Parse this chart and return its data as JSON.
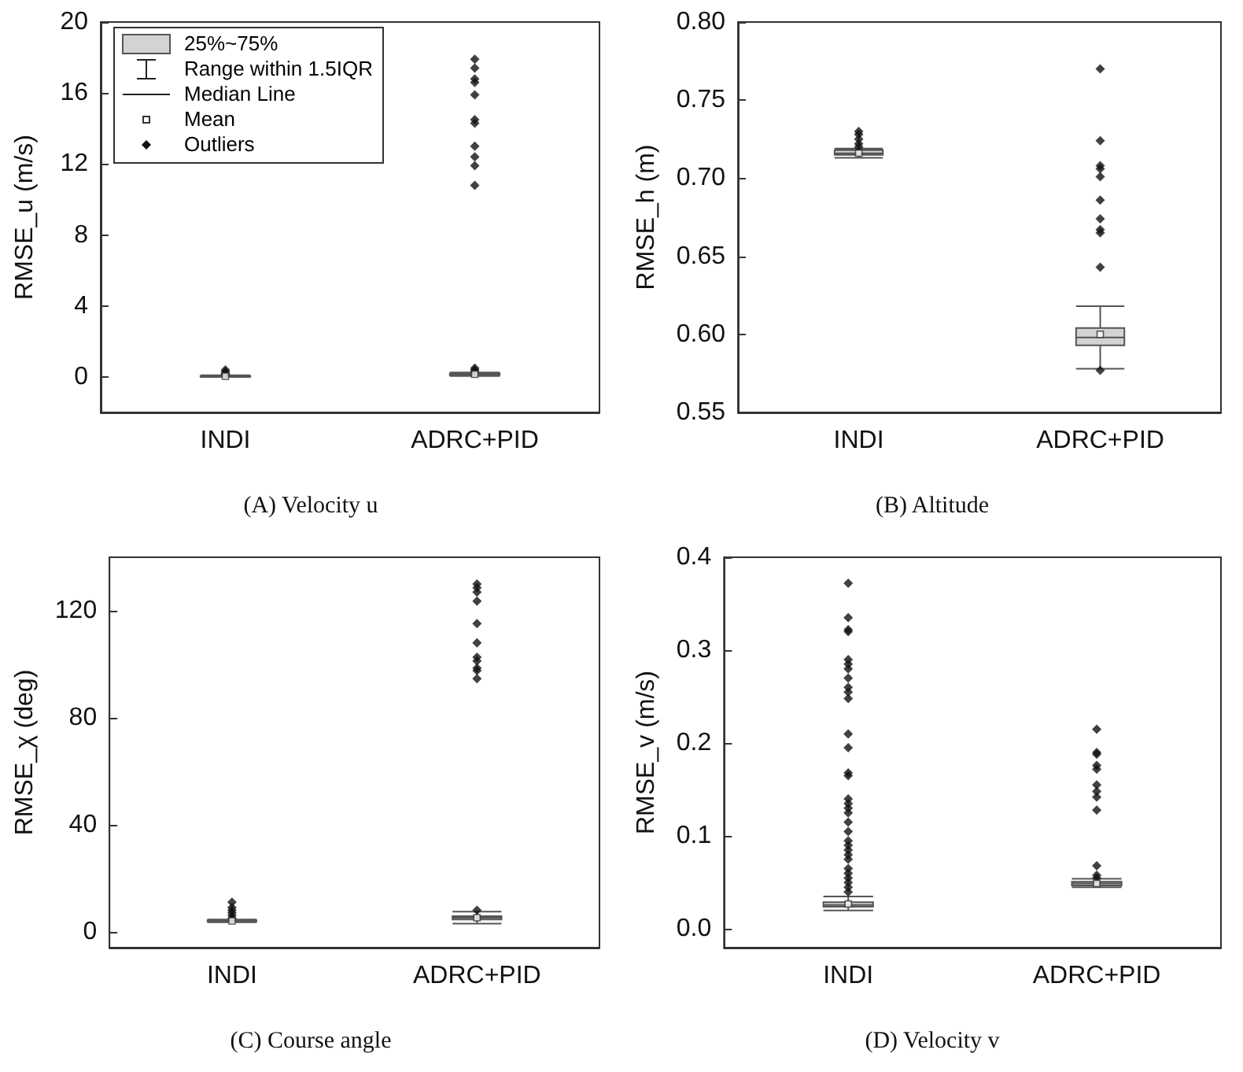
{
  "chart_data": [
    {
      "type": "box",
      "title": "(A) Velocity u",
      "ylabel": "RMSE_u (m/s)",
      "categories": [
        "INDI",
        "ADRC+PID"
      ],
      "color": "#d3d3d3",
      "marker": "diamond",
      "ylim": [
        -2,
        20
      ],
      "yticks": [
        0,
        4,
        8,
        12,
        16,
        20
      ],
      "annotations": [
        "25%~75%",
        "Range within 1.5IQR",
        "Median Line",
        "Mean",
        "Outliers"
      ],
      "boxes": [
        {
          "low": 0,
          "q1": 0.02,
          "median": 0.03,
          "q3": 0.05,
          "high": 0.1,
          "mean": 0.04,
          "outliers": [
            0.15,
            0.2,
            0.3,
            0.4
          ]
        },
        {
          "low": 0.05,
          "q1": 0.1,
          "median": 0.15,
          "q3": 0.2,
          "high": 0.25,
          "mean": 0.15,
          "outliers": [
            0.3,
            0.4,
            0.5,
            10.8,
            11.9,
            12.4,
            13.0,
            14.3,
            14.5,
            15.9,
            16.6,
            16.8,
            17.4,
            17.9
          ]
        }
      ]
    },
    {
      "type": "box",
      "title": "(B) Altitude",
      "ylabel": "RMSE_h (m)",
      "categories": [
        "INDI",
        "ADRC+PID"
      ],
      "color": "#d3d3d3",
      "marker": "diamond",
      "ylim": [
        0.55,
        0.8
      ],
      "yticks": [
        {
          "value": 0.55,
          "label": "0.55"
        },
        {
          "value": 0.6,
          "label": "0.60"
        },
        {
          "value": 0.65,
          "label": "0.65"
        },
        {
          "value": 0.7,
          "label": "0.70"
        },
        {
          "value": 0.75,
          "label": "0.75"
        },
        {
          "value": 0.8,
          "label": "0.80"
        }
      ],
      "boxes": [
        {
          "low": 0.713,
          "q1": 0.715,
          "median": 0.716,
          "q3": 0.718,
          "high": 0.719,
          "mean": 0.716,
          "outliers": [
            0.72,
            0.722,
            0.725,
            0.728,
            0.73
          ]
        },
        {
          "low": 0.578,
          "q1": 0.593,
          "median": 0.598,
          "q3": 0.604,
          "high": 0.618,
          "mean": 0.6,
          "outliers": [
            0.577,
            0.643,
            0.665,
            0.667,
            0.674,
            0.686,
            0.701,
            0.706,
            0.708,
            0.724,
            0.77
          ]
        }
      ]
    },
    {
      "type": "box",
      "title": "(C) Course angle",
      "ylabel": "RMSE_χ (deg)",
      "categories": [
        "INDI",
        "ADRC+PID"
      ],
      "color": "#d3d3d3",
      "marker": "diamond",
      "ylim": [
        -6,
        140
      ],
      "yticks": [
        0,
        40,
        80,
        120
      ],
      "boxes": [
        {
          "low": 3.5,
          "q1": 3.8,
          "median": 4,
          "q3": 4.2,
          "high": 4.5,
          "mean": 4,
          "outliers": [
            5,
            6,
            7,
            8,
            9,
            11
          ]
        },
        {
          "low": 3,
          "q1": 4.5,
          "median": 5.2,
          "q3": 5.8,
          "high": 7.5,
          "mean": 5.2,
          "outliers": [
            8,
            94.6,
            97.6,
            98.6,
            101.2,
            102.6,
            108,
            115.2,
            123.6,
            127,
            128.6,
            130
          ]
        }
      ]
    },
    {
      "type": "box",
      "title": "(D) Velocity v",
      "ylabel": "RMSE_v (m/s)",
      "categories": [
        "INDI",
        "ADRC+PID"
      ],
      "color": "#d3d3d3",
      "marker": "diamond",
      "ylim": [
        -0.02,
        0.4
      ],
      "yticks": [
        {
          "value": 0,
          "label": "0.0"
        },
        {
          "value": 0.1,
          "label": "0.1"
        },
        {
          "value": 0.2,
          "label": "0.2"
        },
        {
          "value": 0.3,
          "label": "0.3"
        },
        {
          "value": 0.4,
          "label": "0.4"
        }
      ],
      "boxes": [
        {
          "low": 0.02,
          "q1": 0.024,
          "median": 0.026,
          "q3": 0.029,
          "high": 0.035,
          "mean": 0.027,
          "outliers": [
            0.04,
            0.045,
            0.05,
            0.055,
            0.06,
            0.065,
            0.075,
            0.08,
            0.085,
            0.09,
            0.095,
            0.105,
            0.115,
            0.125,
            0.13,
            0.135,
            0.14,
            0.165,
            0.168,
            0.195,
            0.21,
            0.248,
            0.255,
            0.26,
            0.27,
            0.28,
            0.285,
            0.29,
            0.32,
            0.322,
            0.335,
            0.372
          ]
        },
        {
          "low": 0.045,
          "q1": 0.047,
          "median": 0.049,
          "q3": 0.051,
          "high": 0.054,
          "mean": 0.049,
          "outliers": [
            0.055,
            0.058,
            0.068,
            0.128,
            0.142,
            0.148,
            0.155,
            0.172,
            0.176,
            0.188,
            0.19,
            0.215
          ]
        }
      ]
    }
  ]
}
